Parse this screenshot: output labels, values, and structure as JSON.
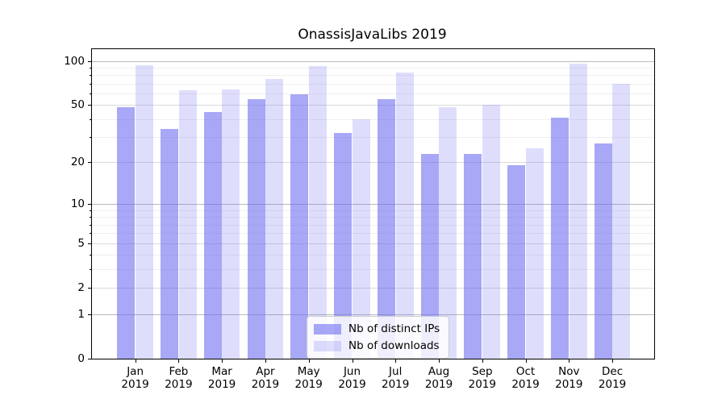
{
  "chart_data": {
    "type": "bar",
    "title": "OnassisJavaLibs 2019",
    "categories": [
      "Jan 2019",
      "Feb 2019",
      "Mar 2019",
      "Apr 2019",
      "May 2019",
      "Jun 2019",
      "Jul 2019",
      "Aug 2019",
      "Sep 2019",
      "Oct 2019",
      "Nov 2019",
      "Dec 2019"
    ],
    "series": [
      {
        "name": "Nb of distinct IPs",
        "fill": "rgba(105,105,240,0.58)",
        "values": [
          48,
          34,
          45,
          55,
          59,
          32,
          55,
          23,
          23,
          19,
          41,
          27
        ]
      },
      {
        "name": "Nb of downloads",
        "fill": "rgba(105,105,240,0.22)",
        "values": [
          93,
          63,
          64,
          75,
          92,
          40,
          83,
          48,
          50,
          25,
          96,
          70
        ]
      }
    ],
    "xlabel": "",
    "ylabel": "",
    "yscale": "log1p",
    "ylim": [
      0,
      120
    ],
    "y_tick_values": [
      100,
      50,
      20,
      10,
      5,
      2,
      1,
      0
    ],
    "y_tick_labels": [
      "100",
      "50",
      "20",
      "10",
      "5",
      "2",
      "1",
      "0"
    ],
    "grid": {
      "on": true,
      "major_lines": [
        1,
        10,
        100
      ],
      "mid_lines": [
        2,
        5,
        20,
        50
      ],
      "minor_lines": [
        3,
        4,
        6,
        7,
        8,
        9,
        30,
        40,
        60,
        70,
        80,
        90
      ]
    },
    "legend_position": "lower center"
  },
  "axes": {
    "x_ticks": [
      {
        "month": "Jan",
        "year": "2019"
      },
      {
        "month": "Feb",
        "year": "2019"
      },
      {
        "month": "Mar",
        "year": "2019"
      },
      {
        "month": "Apr",
        "year": "2019"
      },
      {
        "month": "May",
        "year": "2019"
      },
      {
        "month": "Jun",
        "year": "2019"
      },
      {
        "month": "Jul",
        "year": "2019"
      },
      {
        "month": "Aug",
        "year": "2019"
      },
      {
        "month": "Sep",
        "year": "2019"
      },
      {
        "month": "Oct",
        "year": "2019"
      },
      {
        "month": "Nov",
        "year": "2019"
      },
      {
        "month": "Dec",
        "year": "2019"
      }
    ]
  },
  "colors": {
    "grid_major": "#b9b9b9",
    "grid_mid": "#dadada",
    "grid_minor": "#efefef",
    "spine": "#000000",
    "background": "#ffffff"
  }
}
